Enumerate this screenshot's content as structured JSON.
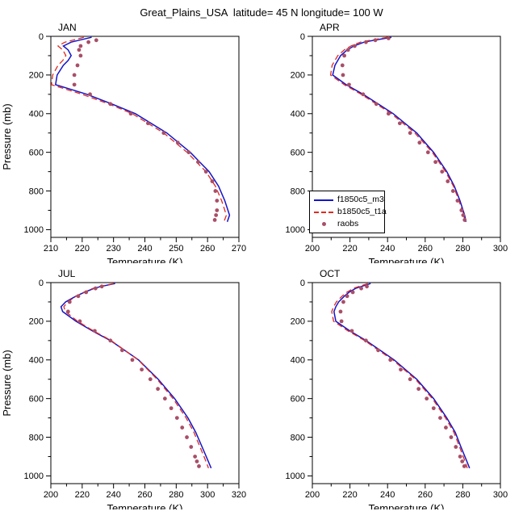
{
  "title": "Great_Plains_USA  latitude= 45 N longitude= 100 W",
  "axes": {
    "xlabel": "Temperature (K)",
    "ylabel": "Pressure (mb)"
  },
  "legend": {
    "position": "between-top-panels",
    "entries": [
      {
        "label": "f1850c5_m3",
        "color": "#1414c8",
        "style": "solid"
      },
      {
        "label": "b1850c5_t1a",
        "color": "#e02a20",
        "style": "dashed"
      },
      {
        "label": "raobs",
        "color": "#a84f68",
        "style": "dots"
      }
    ]
  },
  "chart_data": [
    {
      "type": "line",
      "title": "JAN",
      "xlabel": "Temperature (K)",
      "ylabel": "Pressure (mb)",
      "xlim": [
        210,
        270
      ],
      "xtick_step": 10,
      "xminor_step": 5,
      "ylim": [
        0,
        1000
      ],
      "ytick_step": 200,
      "yminor_step": 100,
      "y_axis_reversed": true,
      "series": [
        {
          "name": "f1850c5_m3",
          "style": "solid",
          "pressure_mb": [
            5,
            20,
            30,
            50,
            70,
            100,
            125,
            150,
            200,
            250,
            300,
            350,
            400,
            500,
            600,
            700,
            775,
            850,
            925,
            960
          ],
          "temperature_k": [
            223,
            219,
            216.5,
            214,
            215.5,
            216.5,
            215.5,
            214,
            212,
            211.5,
            221.5,
            229.5,
            237,
            247,
            254.5,
            260.5,
            263.5,
            265.5,
            267,
            266.3
          ]
        },
        {
          "name": "b1850c5_t1a",
          "style": "dashed",
          "pressure_mb": [
            5,
            20,
            30,
            50,
            70,
            100,
            125,
            150,
            200,
            250,
            300,
            350,
            400,
            500,
            600,
            700,
            775,
            850,
            925,
            960
          ],
          "temperature_k": [
            220.5,
            217,
            214.5,
            212.3,
            213.8,
            214.8,
            213.8,
            212.3,
            210.6,
            210.2,
            220,
            228.5,
            236,
            246,
            253.5,
            259.5,
            262.5,
            264.5,
            266,
            265.2
          ]
        },
        {
          "name": "raobs",
          "style": "dots",
          "pressure_mb": [
            20,
            30,
            50,
            70,
            100,
            150,
            200,
            250,
            300,
            350,
            400,
            450,
            500,
            550,
            600,
            650,
            700,
            750,
            800,
            850,
            900,
            925,
            950
          ],
          "temperature_k": [
            224.5,
            222,
            219.5,
            219,
            219.5,
            218.5,
            217.5,
            217.5,
            222.5,
            229,
            235.5,
            241,
            246,
            250.5,
            254,
            257,
            259.5,
            261.5,
            262.5,
            263,
            263,
            262.7,
            262.3
          ]
        }
      ]
    },
    {
      "type": "line",
      "title": "APR",
      "xlabel": "Temperature (K)",
      "ylabel": "Pressure (mb)",
      "xlim": [
        200,
        300
      ],
      "xtick_step": 20,
      "xminor_step": 10,
      "ylim": [
        0,
        1000
      ],
      "ytick_step": 200,
      "yminor_step": 100,
      "y_axis_reversed": true,
      "series": [
        {
          "name": "f1850c5_m3",
          "style": "solid",
          "pressure_mb": [
            5,
            20,
            30,
            50,
            70,
            100,
            125,
            150,
            200,
            250,
            300,
            350,
            400,
            500,
            600,
            700,
            775,
            850,
            925,
            960
          ],
          "temperature_k": [
            242,
            233,
            227.5,
            222,
            218.5,
            215,
            213.5,
            212,
            210.8,
            218,
            227,
            235,
            243,
            255.5,
            264.5,
            271.5,
            275.5,
            278.5,
            281,
            281.7
          ]
        },
        {
          "name": "b1850c5_t1a",
          "style": "dashed",
          "pressure_mb": [
            5,
            20,
            30,
            50,
            70,
            100,
            125,
            150,
            200,
            250,
            300,
            350,
            400,
            500,
            600,
            700,
            775,
            850,
            925,
            960
          ],
          "temperature_k": [
            240,
            231,
            225.5,
            220.5,
            217,
            213.5,
            212,
            210.5,
            209.7,
            217,
            226,
            234,
            242,
            254.5,
            263.8,
            270.8,
            275,
            278,
            280.5,
            281.2
          ]
        },
        {
          "name": "raobs",
          "style": "dots",
          "pressure_mb": [
            10,
            20,
            30,
            50,
            70,
            100,
            150,
            200,
            250,
            300,
            350,
            400,
            450,
            500,
            550,
            600,
            650,
            700,
            750,
            800,
            850,
            900,
            925,
            950
          ],
          "temperature_k": [
            240.5,
            233.5,
            228.5,
            222.5,
            219,
            217,
            216,
            216.3,
            219.5,
            227,
            234,
            240.5,
            246.5,
            252,
            257,
            261.5,
            265.5,
            269,
            272,
            274.8,
            277.2,
            279.3,
            280.2,
            281
          ]
        }
      ]
    },
    {
      "type": "line",
      "title": "JUL",
      "xlabel": "Temperature (K)",
      "ylabel": "Pressure (mb)",
      "xlim": [
        200,
        320
      ],
      "xtick_step": 20,
      "xminor_step": 10,
      "ylim": [
        0,
        1000
      ],
      "ytick_step": 200,
      "yminor_step": 100,
      "y_axis_reversed": true,
      "series": [
        {
          "name": "f1850c5_m3",
          "style": "solid",
          "pressure_mb": [
            5,
            20,
            30,
            50,
            70,
            100,
            125,
            150,
            200,
            250,
            300,
            350,
            400,
            500,
            600,
            700,
            775,
            850,
            925,
            960
          ],
          "temperature_k": [
            241,
            232,
            227.5,
            221.5,
            216,
            209.5,
            206.5,
            207.5,
            216,
            226.5,
            238,
            247,
            256,
            268.5,
            279,
            287.5,
            292.5,
            296.5,
            300.5,
            302.3
          ]
        },
        {
          "name": "b1850c5_t1a",
          "style": "dashed",
          "pressure_mb": [
            5,
            20,
            30,
            50,
            70,
            100,
            125,
            150,
            200,
            250,
            300,
            350,
            400,
            500,
            600,
            700,
            775,
            850,
            925,
            960
          ],
          "temperature_k": [
            240,
            231,
            226.8,
            221,
            216.2,
            210.8,
            208.3,
            209.3,
            217,
            227.3,
            238.5,
            247,
            255.8,
            267.8,
            278,
            286.3,
            291.3,
            295.2,
            299,
            300.6
          ]
        },
        {
          "name": "raobs",
          "style": "dots",
          "pressure_mb": [
            20,
            30,
            50,
            70,
            100,
            150,
            200,
            250,
            300,
            350,
            400,
            450,
            500,
            550,
            600,
            650,
            700,
            750,
            800,
            850,
            900,
            925,
            950
          ],
          "temperature_k": [
            232.5,
            228.5,
            222.5,
            217.5,
            212,
            211,
            218.5,
            228,
            238,
            245.5,
            252,
            258,
            263.5,
            268.3,
            272.8,
            276.8,
            280.5,
            283.8,
            286.8,
            289.5,
            292,
            293.2,
            294.5
          ]
        }
      ]
    },
    {
      "type": "line",
      "title": "OCT",
      "xlabel": "Temperature (K)",
      "ylabel": "Pressure (mb)",
      "xlim": [
        200,
        300
      ],
      "xtick_step": 20,
      "xminor_step": 10,
      "ylim": [
        0,
        1000
      ],
      "ytick_step": 200,
      "yminor_step": 100,
      "y_axis_reversed": true,
      "series": [
        {
          "name": "f1850c5_m3",
          "style": "solid",
          "pressure_mb": [
            5,
            20,
            30,
            50,
            70,
            100,
            125,
            150,
            200,
            250,
            300,
            350,
            400,
            500,
            600,
            700,
            775,
            850,
            925,
            960
          ],
          "temperature_k": [
            231,
            226,
            223,
            219.5,
            217,
            214,
            212.5,
            211.5,
            212.5,
            220,
            228.5,
            236,
            243.5,
            255.5,
            264.5,
            271.5,
            276,
            279,
            282.2,
            283.6
          ]
        },
        {
          "name": "b1850c5_t1a",
          "style": "dashed",
          "pressure_mb": [
            5,
            20,
            30,
            50,
            70,
            100,
            125,
            150,
            200,
            250,
            300,
            350,
            400,
            500,
            600,
            700,
            775,
            850,
            925,
            960
          ],
          "temperature_k": [
            229.5,
            224.8,
            221.8,
            218.3,
            215.8,
            212.8,
            211.3,
            210.3,
            211.3,
            219,
            227.8,
            235.2,
            242.8,
            254.8,
            263.8,
            270.8,
            275.3,
            278.3,
            281.2,
            282.4
          ]
        },
        {
          "name": "raobs",
          "style": "dots",
          "pressure_mb": [
            20,
            30,
            50,
            70,
            100,
            150,
            200,
            250,
            300,
            350,
            400,
            450,
            500,
            550,
            600,
            650,
            700,
            750,
            800,
            850,
            900,
            925,
            950
          ],
          "temperature_k": [
            229,
            226,
            221.5,
            218.5,
            216.5,
            215,
            215.5,
            221,
            228.5,
            235,
            241.5,
            247,
            252,
            256.5,
            260.8,
            264.5,
            268,
            271,
            273.8,
            276.3,
            278.6,
            279.7,
            280.8
          ]
        }
      ]
    }
  ]
}
